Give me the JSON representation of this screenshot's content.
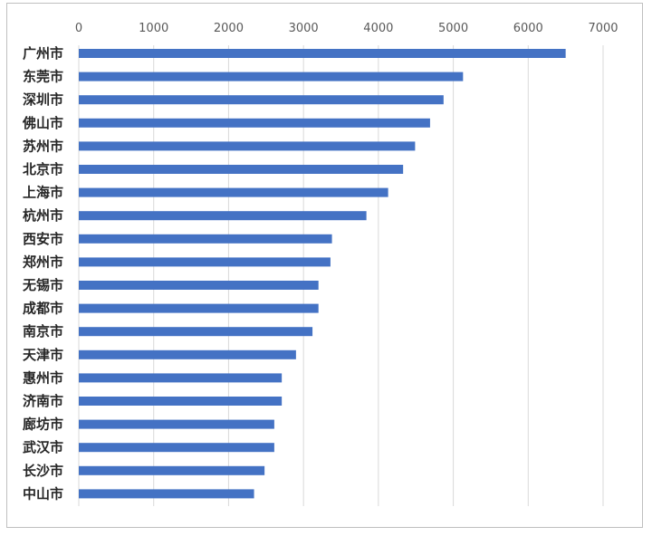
{
  "chart_data": {
    "type": "bar",
    "orientation": "horizontal",
    "categories": [
      "广州市",
      "东莞市",
      "深圳市",
      "佛山市",
      "苏州市",
      "北京市",
      "上海市",
      "杭州市",
      "西安市",
      "郑州市",
      "无锡市",
      "成都市",
      "南京市",
      "天津市",
      "惠州市",
      "济南市",
      "廊坊市",
      "武汉市",
      "长沙市",
      "中山市"
    ],
    "values": [
      6500,
      5130,
      4870,
      4690,
      4490,
      4330,
      4130,
      3840,
      3380,
      3360,
      3200,
      3200,
      3120,
      2900,
      2710,
      2710,
      2610,
      2610,
      2480,
      2340
    ],
    "xlim": [
      0,
      7000
    ],
    "xticks": [
      0,
      1000,
      2000,
      3000,
      4000,
      5000,
      6000,
      7000
    ],
    "tick_labels": [
      "0",
      "1000",
      "2000",
      "3000",
      "4000",
      "5000",
      "6000",
      "7000"
    ],
    "x_axis_position": "top",
    "grid": true,
    "bar_color": "#4472c4",
    "title": "",
    "xlabel": "",
    "ylabel": ""
  }
}
